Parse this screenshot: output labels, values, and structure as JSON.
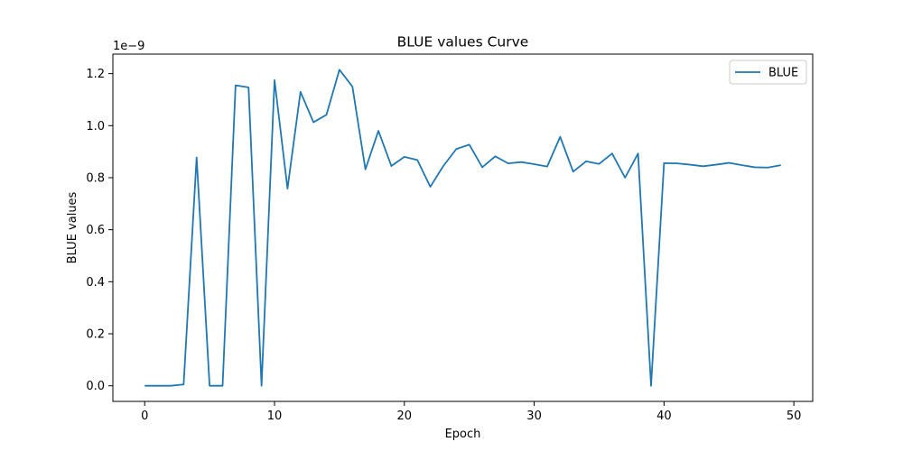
{
  "chart_data": {
    "type": "line",
    "title": "BLUE values Curve",
    "xlabel": "Epoch",
    "ylabel": "BLUE values",
    "y_scale_label": "1e−9",
    "xlim": [
      -2.45,
      51.45
    ],
    "ylim": [
      -0.06,
      1.275
    ],
    "x_ticks": [
      0,
      10,
      20,
      30,
      40,
      50
    ],
    "y_ticks": [
      0.0,
      0.2,
      0.4,
      0.6,
      0.8,
      1.0,
      1.2
    ],
    "y_tick_labels": [
      "0.0",
      "0.2",
      "0.4",
      "0.6",
      "0.8",
      "1.0",
      "1.2"
    ],
    "grid": false,
    "legend_position": "upper right",
    "series": [
      {
        "name": "BLUE",
        "color": "#1f77b4",
        "x": [
          0,
          1,
          2,
          3,
          4,
          5,
          6,
          7,
          8,
          9,
          10,
          11,
          12,
          13,
          14,
          15,
          16,
          17,
          18,
          19,
          20,
          21,
          22,
          23,
          24,
          25,
          26,
          27,
          28,
          29,
          30,
          31,
          32,
          33,
          34,
          35,
          36,
          37,
          38,
          39,
          40,
          41,
          42,
          43,
          44,
          45,
          46,
          47,
          48,
          49
        ],
        "y": [
          0.0,
          0.0,
          0.0,
          0.005,
          0.878,
          0.0,
          0.0,
          1.155,
          1.147,
          0.0,
          1.175,
          0.758,
          1.13,
          1.013,
          1.042,
          1.215,
          1.15,
          0.832,
          0.98,
          0.845,
          0.88,
          0.868,
          0.765,
          0.845,
          0.91,
          0.927,
          0.84,
          0.882,
          0.855,
          0.86,
          0.852,
          0.843,
          0.957,
          0.823,
          0.863,
          0.853,
          0.893,
          0.8,
          0.893,
          0.0,
          0.856,
          0.855,
          0.85,
          0.844,
          0.85,
          0.857,
          0.848,
          0.84,
          0.839,
          0.848
        ]
      }
    ]
  }
}
